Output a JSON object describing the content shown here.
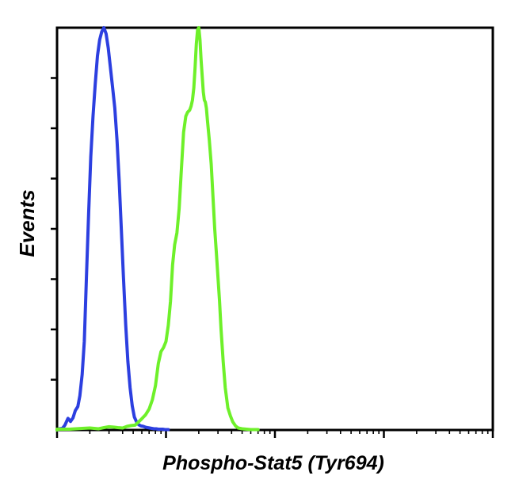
{
  "chart_data": {
    "type": "line",
    "xlabel": "Phospho-Stat5 (Tyr694)",
    "ylabel": "Events",
    "x_scale": "log",
    "xlim": [
      1,
      10000
    ],
    "ylim": [
      0,
      100
    ],
    "grid": false,
    "legend": "none",
    "series": [
      {
        "color": "#2c3fe0",
        "x": [
          1.05,
          1.12,
          1.18,
          1.26,
          1.33,
          1.4,
          1.47,
          1.55,
          1.62,
          1.7,
          1.78,
          1.86,
          1.95,
          2.04,
          2.14,
          2.24,
          2.35,
          2.46,
          2.57,
          2.69,
          2.82,
          2.95,
          3.09,
          3.24,
          3.39,
          3.55,
          3.72,
          3.89,
          4.07,
          4.27,
          4.47,
          4.68,
          4.9,
          5.13,
          5.37,
          5.62,
          5.89,
          6.17,
          6.46,
          6.76,
          7.08,
          7.41,
          7.76,
          8.13,
          8.51,
          8.91,
          9.33,
          9.77,
          10.5
        ],
        "y": [
          0.3,
          0.4,
          1.2,
          2.9,
          2.1,
          3.0,
          4.8,
          5.8,
          8.5,
          13.8,
          22.0,
          38.0,
          54.0,
          68.0,
          78.0,
          86.0,
          93.0,
          97.0,
          99.0,
          100.0,
          98.5,
          95.0,
          90.0,
          85.0,
          80.0,
          72.0,
          62.0,
          50.0,
          38.0,
          26.0,
          17.0,
          10.5,
          6.0,
          3.2,
          2.0,
          1.3,
          1.0,
          0.9,
          0.7,
          0.6,
          0.5,
          0.4,
          0.3,
          0.3,
          0.2,
          0.2,
          0.2,
          0.1,
          0.1
        ]
      },
      {
        "color": "#6ef02a",
        "x": [
          1.0,
          1.3,
          1.7,
          2.0,
          2.4,
          2.7,
          3.0,
          3.3,
          3.6,
          4.0,
          4.4,
          4.8,
          5.2,
          5.6,
          6.0,
          6.5,
          7.0,
          7.5,
          8.0,
          8.5,
          9.0,
          9.5,
          10.0,
          10.5,
          11.0,
          11.5,
          12.0,
          12.6,
          13.2,
          13.8,
          14.5,
          15.2,
          15.8,
          16.5,
          17.0,
          17.5,
          18.0,
          18.5,
          19.0,
          19.5,
          20.0,
          20.5,
          21.0,
          21.5,
          22.0,
          22.5,
          23.0,
          23.5,
          24.0,
          25.0,
          26.0,
          27.0,
          28.0,
          29.0,
          30.0,
          31.0,
          32.0,
          33.5,
          35.0,
          37.0,
          39.0,
          41.0,
          43.5,
          46.0,
          50.0,
          55.0,
          60.0,
          70.0
        ],
        "y": [
          0.2,
          0.2,
          0.4,
          0.5,
          0.3,
          0.6,
          0.8,
          0.7,
          0.6,
          0.5,
          0.9,
          1.1,
          1.2,
          2.0,
          2.8,
          3.8,
          5.2,
          7.5,
          11.0,
          16.5,
          19.5,
          20.5,
          22.0,
          26.0,
          32.0,
          41.0,
          46.0,
          49.0,
          55.0,
          64.0,
          74.0,
          78.0,
          79.0,
          79.5,
          80.5,
          82.0,
          85.0,
          90.0,
          96.0,
          99.5,
          100.0,
          97.0,
          92.0,
          88.0,
          84.0,
          82.0,
          81.5,
          80.0,
          77.0,
          72.0,
          66.0,
          58.0,
          50.0,
          44.0,
          38.0,
          32.0,
          25.0,
          17.0,
          10.5,
          5.5,
          3.5,
          2.0,
          1.0,
          0.5,
          0.3,
          0.2,
          0.1,
          0.1
        ]
      }
    ]
  }
}
